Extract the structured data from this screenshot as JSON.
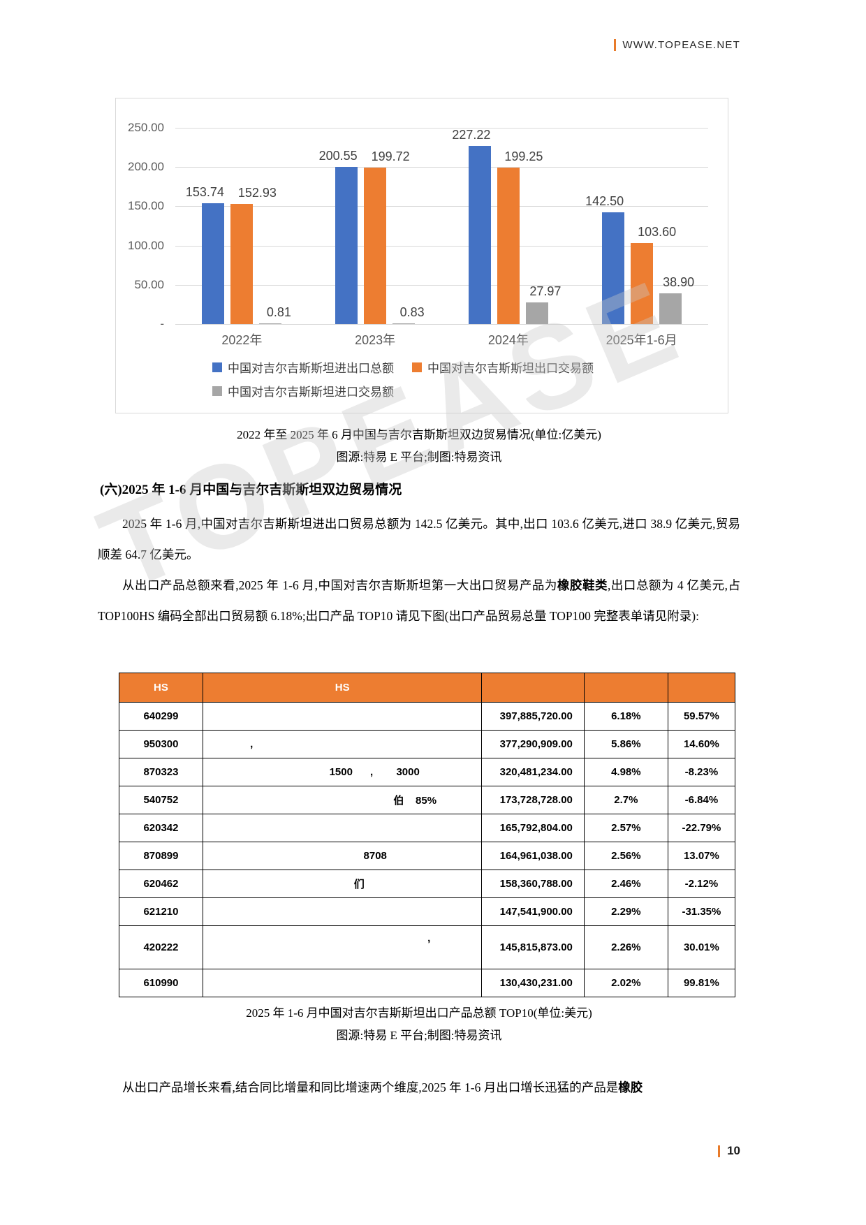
{
  "header": {
    "site": "WWW.TOPEASE.NET"
  },
  "watermark": "TOPEASE",
  "chart_data": {
    "type": "bar",
    "categories": [
      "2022年",
      "2023年",
      "2024年",
      "2025年1-6月"
    ],
    "series": [
      {
        "name": "中国对吉尔吉斯斯坦进出口总额",
        "color": "#4472C4",
        "values": [
          153.74,
          200.55,
          227.22,
          142.5
        ]
      },
      {
        "name": "中国对吉尔吉斯斯坦出口交易额",
        "color": "#ED7D31",
        "values": [
          152.93,
          199.72,
          199.25,
          103.6
        ]
      },
      {
        "name": "中国对吉尔吉斯斯坦进口交易额",
        "color": "#A6A6A6",
        "values": [
          0.81,
          0.83,
          27.97,
          38.9
        ]
      }
    ],
    "ylim": [
      0,
      250
    ],
    "yticks": [
      "250.00",
      "200.00",
      "150.00",
      "100.00",
      "50.00",
      "-"
    ],
    "grid": true,
    "legend_position": "bottom",
    "title": "2022年至2025年6月中国与吉尔吉斯斯坦双边贸易情况(单位:亿美元)"
  },
  "chart_captions": {
    "line1": "2022 年至 2025 年 6 月中国与吉尔吉斯斯坦双边贸易情况(单位:亿美元)",
    "line2": "图源:特易 E 平台;制图:特易资讯"
  },
  "section": {
    "heading": "(六)2025 年 1-6 月中国与吉尔吉斯斯坦双边贸易情况"
  },
  "paragraphs": {
    "p1": "2025 年 1-6 月,中国对吉尔吉斯斯坦进出口贸易总额为 142.5 亿美元。其中,出口 103.6 亿美元,进口 38.9 亿美元,贸易顺差 64.7 亿美元。",
    "p2_before": "从出口产品总额来看,2025 年 1-6 月,中国对吉尔吉斯斯坦第一大出口贸易产品为",
    "p2_bold": "橡胶鞋类",
    "p2_after": ",出口总额为 4 亿美元,占 TOP100HS 编码全部出口贸易额 6.18%;出口产品 TOP10 请见下图(出口产品贸易总量 TOP100 完整表单请见附录):",
    "p3_before": "从出口产品增长来看,结合同比增量和同比增速两个维度,2025 年 1-6 月出口增长迅猛的产品是",
    "p3_bold": "橡胶"
  },
  "table": {
    "headers": [
      "HS",
      "HS",
      "",
      "",
      ""
    ],
    "rows": [
      {
        "code": "640299",
        "desc": "",
        "amount": "397,885,720.00",
        "share": "6.18%",
        "growth": "59.57%"
      },
      {
        "code": "950300",
        "desc": ",",
        "amount": "377,290,909.00",
        "share": "5.86%",
        "growth": "14.60%"
      },
      {
        "code": "870323",
        "desc": "1500      ,        3000",
        "amount": "320,481,234.00",
        "share": "4.98%",
        "growth": "-8.23%"
      },
      {
        "code": "540752",
        "desc": "伯    85%",
        "amount": "173,728,728.00",
        "share": "2.7%",
        "growth": "-6.84%"
      },
      {
        "code": "620342",
        "desc": "",
        "amount": "165,792,804.00",
        "share": "2.57%",
        "growth": "-22.79%"
      },
      {
        "code": "870899",
        "desc": "8708",
        "amount": "164,961,038.00",
        "share": "2.56%",
        "growth": "13.07%"
      },
      {
        "code": "620462",
        "desc": "们",
        "amount": "158,360,788.00",
        "share": "2.46%",
        "growth": "-2.12%"
      },
      {
        "code": "621210",
        "desc": "",
        "amount": "147,541,900.00",
        "share": "2.29%",
        "growth": "-31.35%"
      },
      {
        "code": "420222",
        "desc": ",",
        "amount": "145,815,873.00",
        "share": "2.26%",
        "growth": "30.01%"
      },
      {
        "code": "610990",
        "desc": "",
        "amount": "130,430,231.00",
        "share": "2.02%",
        "growth": "99.81%"
      }
    ],
    "caption_line1": "2025 年 1-6 月中国对吉尔吉斯斯坦出口产品总额 TOP10(单位:美元)",
    "caption_line2": "图源:特易 E 平台;制图:特易资讯"
  },
  "footer": {
    "page_number": "10"
  },
  "colors": {
    "accent_orange": "#E87B2A",
    "table_header_orange": "#ED7D31",
    "bar_blue": "#4472C4",
    "bar_orange": "#ED7D31",
    "bar_gray": "#A6A6A6"
  }
}
